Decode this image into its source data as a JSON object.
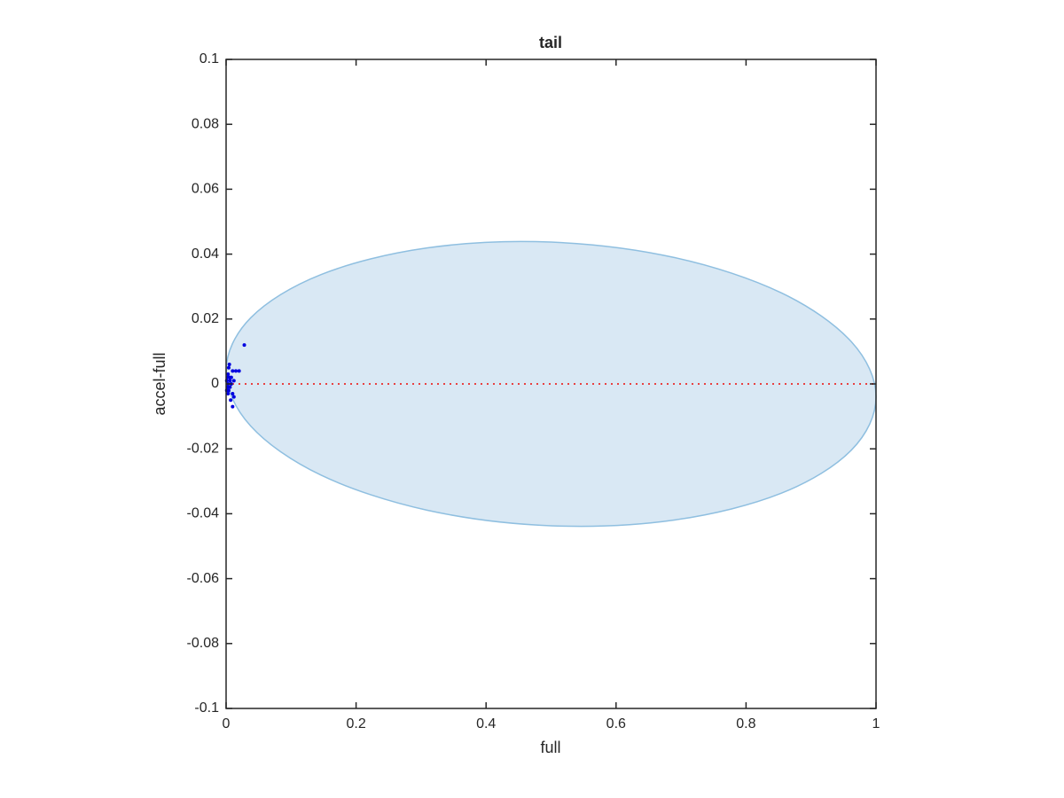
{
  "chart_data": {
    "type": "scatter",
    "title": "tail",
    "x_label": "full",
    "y_label": "accel-full",
    "xlim": [
      0,
      1
    ],
    "ylim": [
      -0.1,
      0.1
    ],
    "xticks": [
      0,
      0.2,
      0.4,
      0.6,
      0.8,
      1
    ],
    "yticks": [
      -0.1,
      -0.08,
      -0.06,
      -0.04,
      -0.02,
      0,
      0.02,
      0.04,
      0.06,
      0.08,
      0.1
    ],
    "series": [
      {
        "kind": "area",
        "color": "#8fbfe0",
        "fill": "#d9e8f4",
        "x": [
          1,
          0.962,
          0.854,
          0.691,
          0.5,
          0.309,
          0.146,
          0.038,
          0,
          0.038,
          0.146,
          0.309,
          0.5,
          0.691,
          0.854,
          0.962
        ],
        "y": [
          -0.004,
          0.013,
          0.0281,
          0.0389,
          0.0437,
          0.0419,
          0.0337,
          0.0204,
          0.004,
          -0.013,
          -0.0281,
          -0.0389,
          -0.0437,
          -0.0419,
          -0.0337,
          -0.0204
        ]
      },
      {
        "kind": "line",
        "color": "#e84040",
        "dash": true,
        "x": [
          0,
          1
        ],
        "y": [
          0,
          0
        ]
      },
      {
        "kind": "scatter",
        "color": "#0000e0",
        "x": [
          0.028,
          0.02,
          0.015,
          0.01,
          0.005,
          0.004,
          0.003,
          0.002,
          0.001,
          0.006,
          0.008,
          0.002,
          0.004,
          0.01,
          0.012,
          0.007,
          0.01,
          0.003,
          0.001,
          0.005,
          0.008,
          0.012,
          0.003,
          0.006
        ],
        "y": [
          0.012,
          0.004,
          0.004,
          0.004,
          0.006,
          0.005,
          0.003,
          0.002,
          0.001,
          0.001,
          0,
          -0.001,
          -0.002,
          -0.003,
          -0.004,
          -0.005,
          -0.007,
          -0.003,
          -0.002,
          0.002,
          0.002,
          0.001,
          0,
          -0.001
        ]
      }
    ]
  }
}
